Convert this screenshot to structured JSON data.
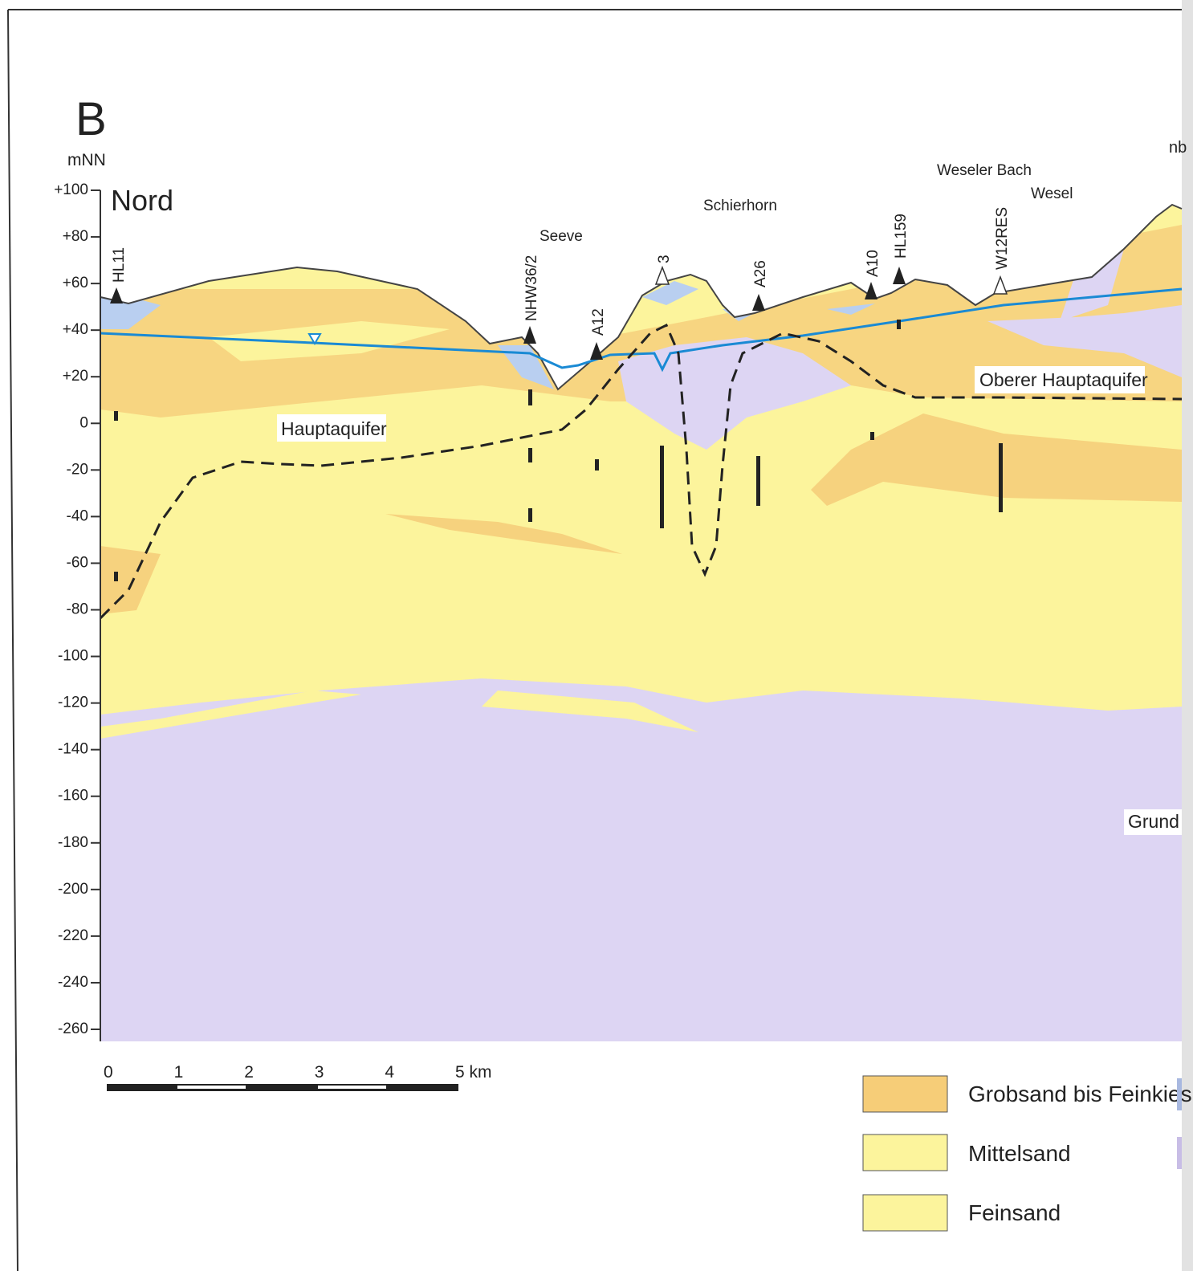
{
  "header": {
    "panel": "B",
    "unit": "mNN",
    "direction": "Nord",
    "edge_text": "nb"
  },
  "axis": {
    "ticks": [
      "+100",
      "+80",
      "+60",
      "+40",
      "+20",
      "0",
      "-20",
      "-40",
      "-60",
      "-80",
      "-100",
      "-120",
      "-140",
      "-160",
      "-180",
      "-200",
      "-220",
      "-240",
      "-260"
    ]
  },
  "places": [
    "Seeve",
    "Schierhorn",
    "Weseler Bach",
    "Wesel"
  ],
  "wells": [
    "HL11",
    "NHW36/2",
    "A12",
    "3",
    "A26",
    "A10",
    "HL159",
    "W12RES"
  ],
  "units": [
    "Hauptaquifer",
    "Oberer Hauptaquifer",
    "Grund"
  ],
  "scale": [
    "0",
    "1",
    "2",
    "3",
    "4",
    "5 km"
  ],
  "legend": [
    "Grobsand bis Feinkies",
    "Mittelsand",
    "Feinsand"
  ]
}
